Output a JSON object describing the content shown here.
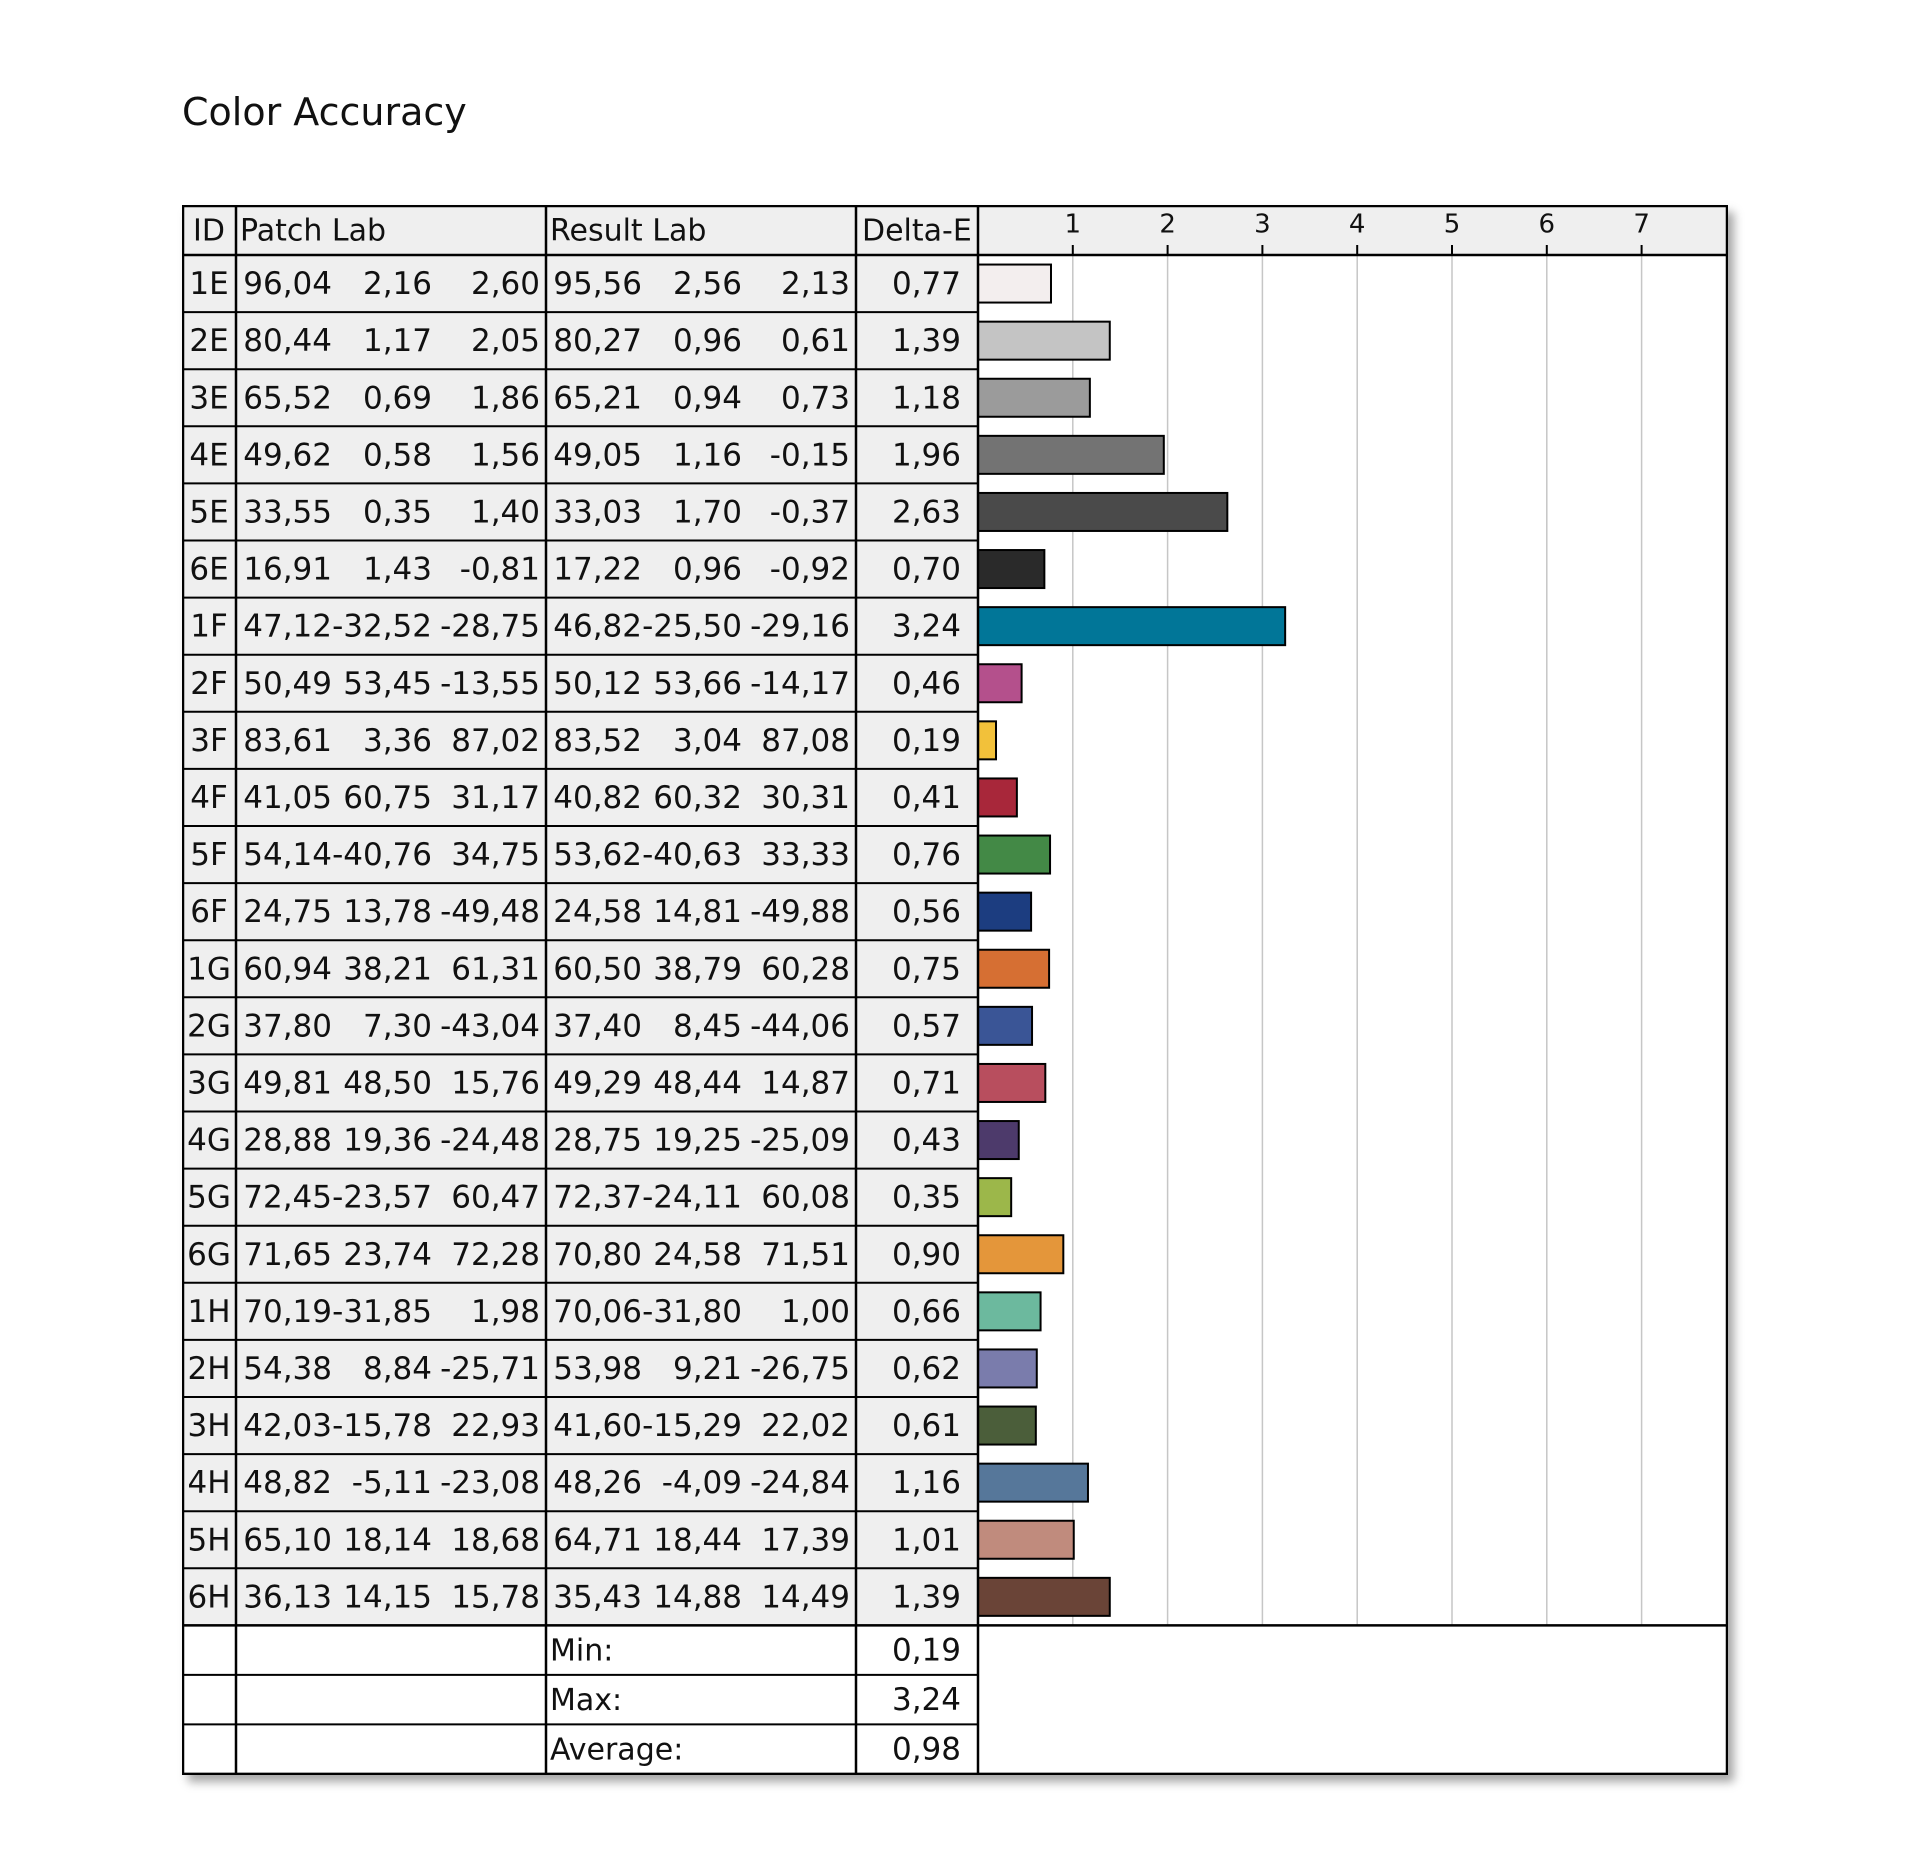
{
  "title": "Color Accuracy",
  "columns": {
    "id": "ID",
    "patch": "Patch Lab",
    "result": "Result Lab",
    "delta": "Delta-E"
  },
  "rows": [
    {
      "id": "1E",
      "patch": [
        "96,04",
        "2,16",
        "2,60"
      ],
      "result": [
        "95,56",
        "2,56",
        "2,13"
      ],
      "delta": "0,77",
      "color": "#f3eeee"
    },
    {
      "id": "2E",
      "patch": [
        "80,44",
        "1,17",
        "2,05"
      ],
      "result": [
        "80,27",
        "0,96",
        "0,61"
      ],
      "delta": "1,39",
      "color": "#c4c4c4"
    },
    {
      "id": "3E",
      "patch": [
        "65,52",
        "0,69",
        "1,86"
      ],
      "result": [
        "65,21",
        "0,94",
        "0,73"
      ],
      "delta": "1,18",
      "color": "#9b9b9b"
    },
    {
      "id": "4E",
      "patch": [
        "49,62",
        "0,58",
        "1,56"
      ],
      "result": [
        "49,05",
        "1,16",
        "-0,15"
      ],
      "delta": "1,96",
      "color": "#737373"
    },
    {
      "id": "5E",
      "patch": [
        "33,55",
        "0,35",
        "1,40"
      ],
      "result": [
        "33,03",
        "1,70",
        "-0,37"
      ],
      "delta": "2,63",
      "color": "#4a4a4a"
    },
    {
      "id": "6E",
      "patch": [
        "16,91",
        "1,43",
        "-0,81"
      ],
      "result": [
        "17,22",
        "0,96",
        "-0,92"
      ],
      "delta": "0,70",
      "color": "#2a2a2a"
    },
    {
      "id": "1F",
      "patch": [
        "47,12",
        "-32,52",
        "-28,75"
      ],
      "result": [
        "46,82",
        "-25,50",
        "-29,16"
      ],
      "delta": "3,24",
      "color": "#017698"
    },
    {
      "id": "2F",
      "patch": [
        "50,49",
        "53,45",
        "-13,55"
      ],
      "result": [
        "50,12",
        "53,66",
        "-14,17"
      ],
      "delta": "0,46",
      "color": "#b4508c"
    },
    {
      "id": "3F",
      "patch": [
        "83,61",
        "3,36",
        "87,02"
      ],
      "result": [
        "83,52",
        "3,04",
        "87,08"
      ],
      "delta": "0,19",
      "color": "#f2c13a"
    },
    {
      "id": "4F",
      "patch": [
        "41,05",
        "60,75",
        "31,17"
      ],
      "result": [
        "40,82",
        "60,32",
        "30,31"
      ],
      "delta": "0,41",
      "color": "#a8273a"
    },
    {
      "id": "5F",
      "patch": [
        "54,14",
        "-40,76",
        "34,75"
      ],
      "result": [
        "53,62",
        "-40,63",
        "33,33"
      ],
      "delta": "0,76",
      "color": "#438946"
    },
    {
      "id": "6F",
      "patch": [
        "24,75",
        "13,78",
        "-49,48"
      ],
      "result": [
        "24,58",
        "14,81",
        "-49,88"
      ],
      "delta": "0,56",
      "color": "#1c3d80"
    },
    {
      "id": "1G",
      "patch": [
        "60,94",
        "38,21",
        "61,31"
      ],
      "result": [
        "60,50",
        "38,79",
        "60,28"
      ],
      "delta": "0,75",
      "color": "#d66f33"
    },
    {
      "id": "2G",
      "patch": [
        "37,80",
        "7,30",
        "-43,04"
      ],
      "result": [
        "37,40",
        "8,45",
        "-44,06"
      ],
      "delta": "0,57",
      "color": "#3a5596"
    },
    {
      "id": "3G",
      "patch": [
        "49,81",
        "48,50",
        "15,76"
      ],
      "result": [
        "49,29",
        "48,44",
        "14,87"
      ],
      "delta": "0,71",
      "color": "#b84e5e"
    },
    {
      "id": "4G",
      "patch": [
        "28,88",
        "19,36",
        "-24,48"
      ],
      "result": [
        "28,75",
        "19,25",
        "-25,09"
      ],
      "delta": "0,43",
      "color": "#4d3a6b"
    },
    {
      "id": "5G",
      "patch": [
        "72,45",
        "-23,57",
        "60,47"
      ],
      "result": [
        "72,37",
        "-24,11",
        "60,08"
      ],
      "delta": "0,35",
      "color": "#9cb74a"
    },
    {
      "id": "6G",
      "patch": [
        "71,65",
        "23,74",
        "72,28"
      ],
      "result": [
        "70,80",
        "24,58",
        "71,51"
      ],
      "delta": "0,90",
      "color": "#e4963a"
    },
    {
      "id": "1H",
      "patch": [
        "70,19",
        "-31,85",
        "1,98"
      ],
      "result": [
        "70,06",
        "-31,80",
        "1,00"
      ],
      "delta": "0,66",
      "color": "#6cb99e"
    },
    {
      "id": "2H",
      "patch": [
        "54,38",
        "8,84",
        "-25,71"
      ],
      "result": [
        "53,98",
        "9,21",
        "-26,75"
      ],
      "delta": "0,62",
      "color": "#7a7cac"
    },
    {
      "id": "3H",
      "patch": [
        "42,03",
        "-15,78",
        "22,93"
      ],
      "result": [
        "41,60",
        "-15,29",
        "22,02"
      ],
      "delta": "0,61",
      "color": "#4b5e3a"
    },
    {
      "id": "4H",
      "patch": [
        "48,82",
        "-5,11",
        "-23,08"
      ],
      "result": [
        "48,26",
        "-4,09",
        "-24,84"
      ],
      "delta": "1,16",
      "color": "#56779a"
    },
    {
      "id": "5H",
      "patch": [
        "65,10",
        "18,14",
        "18,68"
      ],
      "result": [
        "64,71",
        "18,44",
        "17,39"
      ],
      "delta": "1,01",
      "color": "#c08b7d"
    },
    {
      "id": "6H",
      "patch": [
        "36,13",
        "14,15",
        "15,78"
      ],
      "result": [
        "35,43",
        "14,88",
        "14,49"
      ],
      "delta": "1,39",
      "color": "#6a4437"
    }
  ],
  "summary": [
    {
      "label": "Min:",
      "value": "0,19"
    },
    {
      "label": "Max:",
      "value": "3,24"
    },
    {
      "label": "Average:",
      "value": "0,98"
    }
  ],
  "chart_data": {
    "type": "bar",
    "orientation": "horizontal",
    "categories": [
      "1E",
      "2E",
      "3E",
      "4E",
      "5E",
      "6E",
      "1F",
      "2F",
      "3F",
      "4F",
      "5F",
      "6F",
      "1G",
      "2G",
      "3G",
      "4G",
      "5G",
      "6G",
      "1H",
      "2H",
      "3H",
      "4H",
      "5H",
      "6H"
    ],
    "values": [
      0.77,
      1.39,
      1.18,
      1.96,
      2.63,
      0.7,
      3.24,
      0.46,
      0.19,
      0.41,
      0.76,
      0.56,
      0.75,
      0.57,
      0.71,
      0.43,
      0.35,
      0.9,
      0.66,
      0.62,
      0.61,
      1.16,
      1.01,
      1.39
    ],
    "ticks": [
      "1",
      "2",
      "3",
      "4",
      "5",
      "6",
      "7"
    ],
    "xlim": [
      0,
      8
    ],
    "grid": true
  }
}
